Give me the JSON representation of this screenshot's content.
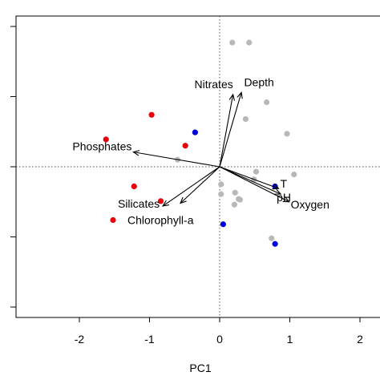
{
  "chart_data": {
    "type": "scatter",
    "title": "",
    "xlabel": "PC1",
    "ylabel": "",
    "xlim": [
      -2.9,
      2.3
    ],
    "ylim": [
      -2.15,
      2.05
    ],
    "x_ticks": [
      "-2",
      "-1",
      "0",
      "1",
      "2"
    ],
    "y_tick_count": 5,
    "reference_lines": {
      "x": 0,
      "y": 0,
      "style": "dotted"
    },
    "series": [
      {
        "color": "#e8000b",
        "points": [
          [
            -1.62,
            0.39
          ],
          [
            -0.97,
            0.74
          ],
          [
            -0.49,
            0.3
          ],
          [
            -1.22,
            -0.28
          ],
          [
            -0.84,
            -0.49
          ],
          [
            -1.52,
            -0.76
          ]
        ]
      },
      {
        "color": "#0000d8",
        "points": [
          [
            -0.35,
            0.49
          ],
          [
            0.79,
            -0.28
          ],
          [
            0.05,
            -0.82
          ],
          [
            0.79,
            -1.1
          ]
        ]
      },
      {
        "color": "#b8b8b8",
        "points": [
          [
            0.18,
            1.77
          ],
          [
            0.42,
            1.77
          ],
          [
            0.67,
            0.92
          ],
          [
            0.37,
            0.68
          ],
          [
            0.96,
            0.47
          ],
          [
            -0.6,
            0.1
          ],
          [
            0.52,
            -0.07
          ],
          [
            1.06,
            -0.11
          ],
          [
            0.49,
            -0.18
          ],
          [
            0.02,
            -0.25
          ],
          [
            0.02,
            -0.39
          ],
          [
            0.22,
            -0.37
          ],
          [
            0.27,
            -0.46
          ],
          [
            0.29,
            -0.47
          ],
          [
            0.21,
            -0.54
          ],
          [
            0.74,
            -1.02
          ]
        ]
      }
    ],
    "loadings": [
      {
        "label": "Nitrates",
        "x": 0.19,
        "y": 1.03
      },
      {
        "label": "Depth",
        "x": 0.31,
        "y": 1.06
      },
      {
        "label": "Phosphates",
        "x": -1.23,
        "y": 0.21
      },
      {
        "label": "Silicates",
        "x": -0.81,
        "y": -0.56
      },
      {
        "label": "Chlorophyll-a",
        "x": -0.56,
        "y": -0.52
      },
      {
        "label": "T",
        "x": 0.84,
        "y": -0.31
      },
      {
        "label": "pH",
        "x": 0.87,
        "y": -0.39
      },
      {
        "label": "Oxygen",
        "x": 0.99,
        "y": -0.5
      }
    ]
  }
}
